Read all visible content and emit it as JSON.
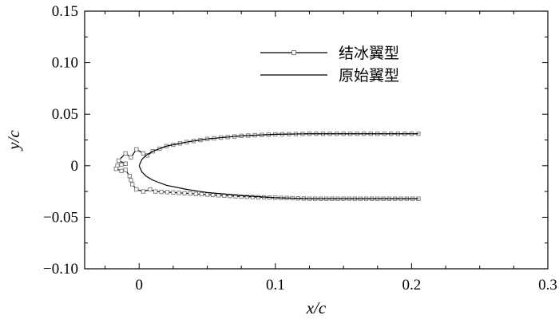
{
  "chart_data": {
    "type": "line",
    "xlabel": "x/c",
    "ylabel": "y/c",
    "xlim": [
      -0.04,
      0.3
    ],
    "ylim": [
      -0.1,
      0.15
    ],
    "x_ticks": [
      0,
      0.1,
      0.2,
      0.3
    ],
    "x_tick_labels": [
      "0",
      "0.1",
      "0.2",
      "0.3"
    ],
    "y_ticks": [
      -0.1,
      -0.05,
      0,
      0.05,
      0.1,
      0.15
    ],
    "y_tick_labels": [
      "−0.10",
      "−0.05",
      "0",
      "0.05",
      "0.10",
      "0.15"
    ],
    "grid": false,
    "legend_position": "top-right",
    "series": [
      {
        "name": "结冰翼型",
        "marker": "square",
        "color": "#000000",
        "upper": [
          [
            -0.01,
            0.002
          ],
          [
            -0.015,
            0.005
          ],
          [
            -0.01,
            0.012
          ],
          [
            -0.006,
            0.008
          ],
          [
            -0.002,
            0.016
          ],
          [
            0.003,
            0.012
          ],
          [
            0.006,
            0.01
          ],
          [
            0.01,
            0.014
          ],
          [
            0.02,
            0.019
          ],
          [
            0.035,
            0.023
          ],
          [
            0.05,
            0.026
          ],
          [
            0.075,
            0.029
          ],
          [
            0.1,
            0.0305
          ],
          [
            0.125,
            0.031
          ],
          [
            0.15,
            0.031
          ],
          [
            0.175,
            0.031
          ],
          [
            0.205,
            0.031
          ]
        ],
        "lower": [
          [
            -0.01,
            0.002
          ],
          [
            -0.016,
            0.0
          ],
          [
            -0.017,
            -0.003
          ],
          [
            -0.013,
            -0.005
          ],
          [
            -0.01,
            -0.004
          ],
          [
            -0.007,
            -0.01
          ],
          [
            -0.005,
            -0.018
          ],
          [
            -0.002,
            -0.023
          ],
          [
            0.003,
            -0.025
          ],
          [
            0.008,
            -0.023
          ],
          [
            0.012,
            -0.025
          ],
          [
            0.025,
            -0.026
          ],
          [
            0.05,
            -0.028
          ],
          [
            0.075,
            -0.03
          ],
          [
            0.1,
            -0.031
          ],
          [
            0.125,
            -0.032
          ],
          [
            0.15,
            -0.032
          ],
          [
            0.175,
            -0.032
          ],
          [
            0.205,
            -0.032
          ]
        ]
      },
      {
        "name": "原始翼型",
        "marker": "none",
        "color": "#000000",
        "upper": [
          [
            0.0,
            0.0
          ],
          [
            0.002,
            0.006
          ],
          [
            0.005,
            0.01
          ],
          [
            0.01,
            0.014
          ],
          [
            0.02,
            0.019
          ],
          [
            0.035,
            0.023
          ],
          [
            0.05,
            0.026
          ],
          [
            0.075,
            0.029
          ],
          [
            0.1,
            0.0305
          ],
          [
            0.125,
            0.031
          ],
          [
            0.15,
            0.031
          ],
          [
            0.175,
            0.031
          ],
          [
            0.205,
            0.031
          ]
        ],
        "lower": [
          [
            0.0,
            0.0
          ],
          [
            0.002,
            -0.006
          ],
          [
            0.005,
            -0.01
          ],
          [
            0.01,
            -0.014
          ],
          [
            0.02,
            -0.019
          ],
          [
            0.035,
            -0.023
          ],
          [
            0.05,
            -0.026
          ],
          [
            0.075,
            -0.029
          ],
          [
            0.1,
            -0.031
          ],
          [
            0.125,
            -0.032
          ],
          [
            0.15,
            -0.032
          ],
          [
            0.175,
            -0.032
          ],
          [
            0.205,
            -0.032
          ]
        ]
      }
    ]
  }
}
